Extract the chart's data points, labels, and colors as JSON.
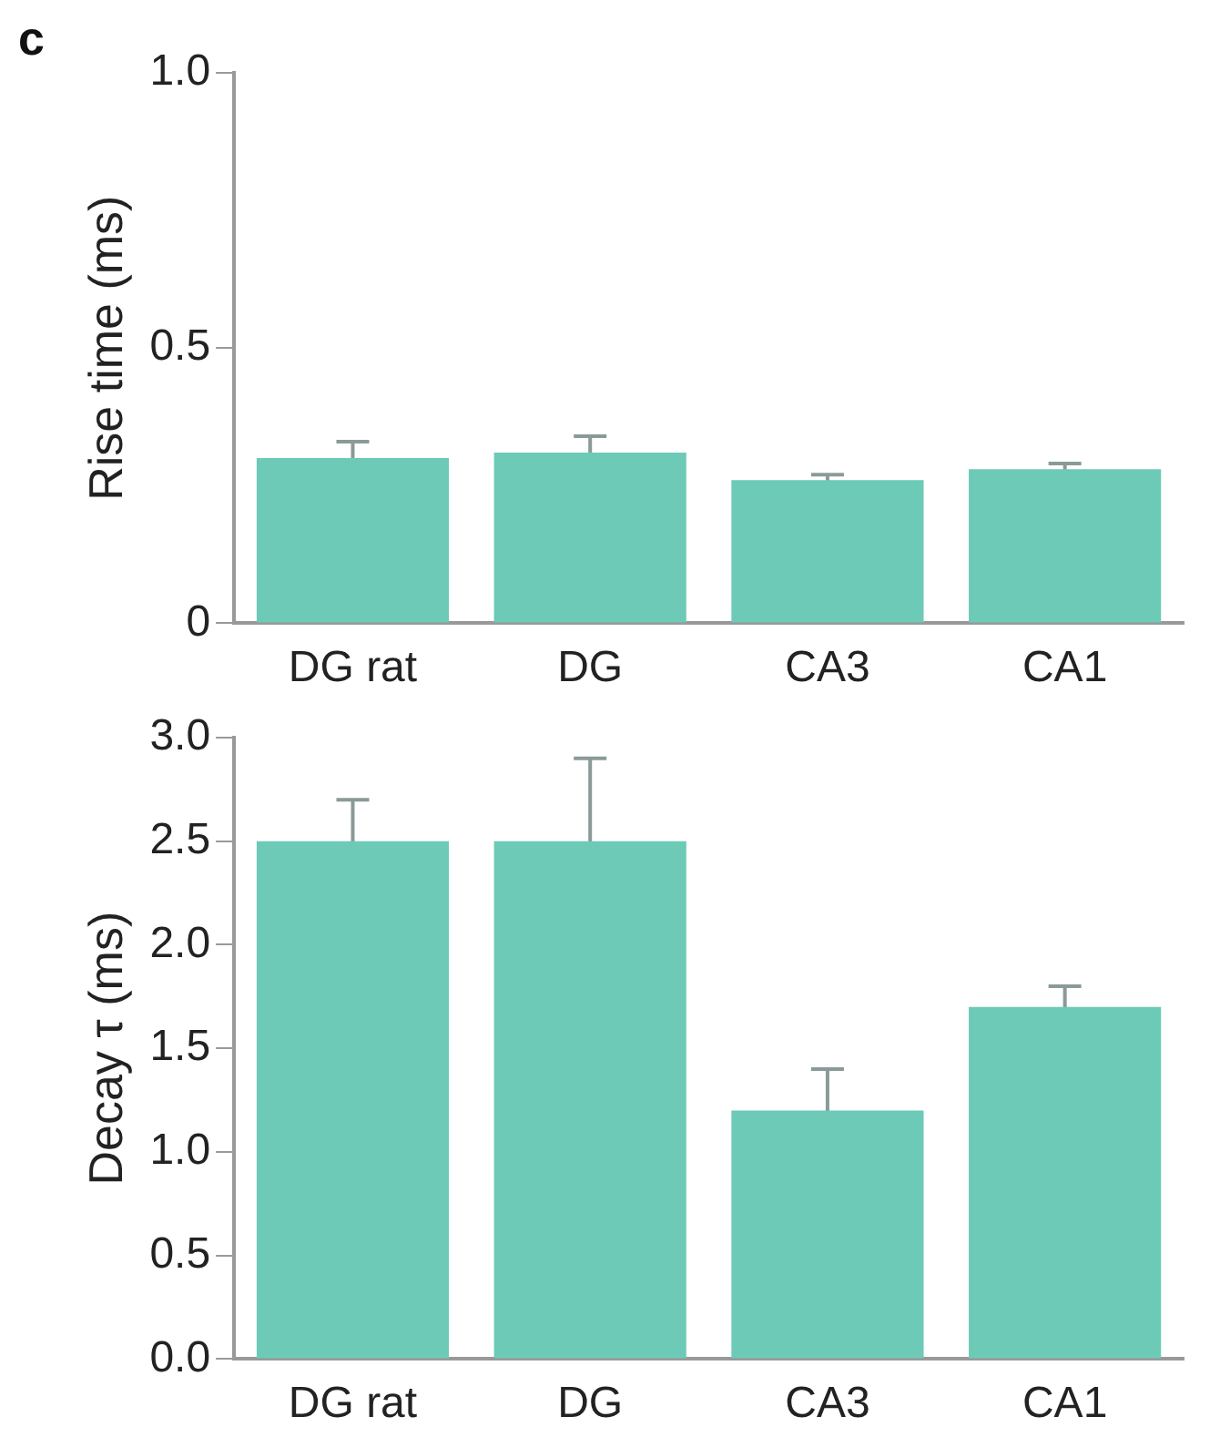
{
  "chart_data": [
    {
      "type": "bar",
      "categories": [
        "DG rat",
        "DG",
        "CA3",
        "CA1"
      ],
      "ylabel": "Rise time (ms)",
      "annotations": [
        "c"
      ],
      "color": "#6ccab7",
      "values": [
        0.3,
        0.31,
        0.26,
        0.28
      ],
      "errors": [
        0.03,
        0.03,
        0.01,
        0.01
      ],
      "ylim": [
        0,
        1
      ],
      "yticks": [
        0,
        {
          "value": 0.5,
          "label": "0.5"
        },
        {
          "value": 1,
          "label": "1.0"
        }
      ],
      "grid": false,
      "legend": false
    },
    {
      "type": "bar",
      "categories": [
        "DG rat",
        "DG",
        "CA3",
        "CA1"
      ],
      "ylabel": "Decay τ (ms)",
      "color": "#6ccab7",
      "values": [
        2.5,
        2.5,
        1.2,
        1.7
      ],
      "errors": [
        0.2,
        0.4,
        0.2,
        0.1
      ],
      "ylim": [
        0,
        3
      ],
      "yticks": [
        {
          "value": 0,
          "label": "0.0"
        },
        {
          "value": 0.5,
          "label": "0.5"
        },
        {
          "value": 1,
          "label": "1.0"
        },
        {
          "value": 1.5,
          "label": "1.5"
        },
        {
          "value": 2,
          "label": "2.0"
        },
        {
          "value": 2.5,
          "label": "2.5"
        },
        {
          "value": 3,
          "label": "3.0"
        }
      ],
      "grid": false,
      "legend": false
    }
  ]
}
